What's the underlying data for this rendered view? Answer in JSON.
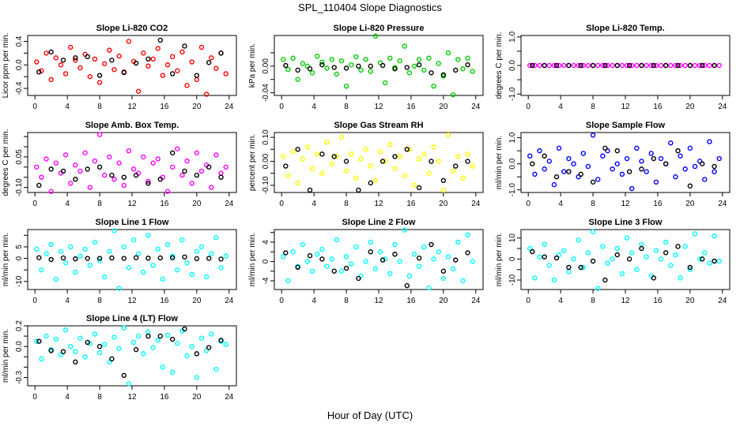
{
  "title": "SPL_110404  Slope Diagnostics",
  "xlabel": "Hour of Day (UTC)",
  "chart_data": {
    "type": "scatter",
    "grid": false,
    "xlim": [
      -0.9,
      24.9
    ],
    "xticks": [
      0,
      4,
      8,
      12,
      16,
      20,
      24
    ],
    "x": [
      0.2,
      0.8,
      1.4,
      2.0,
      2.6,
      3.2,
      3.8,
      4.4,
      5.0,
      5.6,
      6.2,
      6.8,
      7.4,
      8.0,
      8.6,
      9.2,
      9.8,
      10.4,
      11.0,
      11.6,
      12.2,
      12.8,
      13.4,
      14.0,
      14.6,
      15.2,
      15.8,
      16.4,
      17.0,
      17.6,
      18.2,
      18.8,
      19.4,
      20.0,
      20.6,
      21.2,
      21.8,
      22.4,
      23.0,
      23.6
    ],
    "black_x": [
      0.5,
      2.0,
      3.5,
      5.0,
      6.5,
      8.0,
      9.5,
      11.0,
      12.5,
      14.0,
      15.5,
      17.0,
      18.5,
      20.0,
      21.5,
      23.0
    ],
    "black_color": "#000000",
    "panels": [
      {
        "title": "Slope Li-820 CO2",
        "ylabel": "Licor ppm per min.",
        "color": "#ff0000",
        "ylim": [
          -0.52,
          0.5
        ],
        "yticks": [
          -0.4,
          -0.2,
          0.0,
          0.2,
          0.4
        ],
        "ytick_labels": [
          "-0.4",
          "",
          "0.0",
          "",
          "0.4"
        ],
        "values": [
          0.05,
          -0.1,
          0.2,
          -0.25,
          0.12,
          0.0,
          -0.15,
          0.3,
          0.08,
          -0.05,
          0.18,
          -0.2,
          0.1,
          -0.3,
          0.02,
          0.25,
          -0.08,
          0.15,
          -0.12,
          0.4,
          0.06,
          -0.45,
          0.2,
          -0.02,
          0.1,
          0.28,
          -0.18,
          0.0,
          0.14,
          -0.1,
          0.22,
          -0.35,
          0.05,
          -0.25,
          0.3,
          -0.5,
          0.12,
          -0.06,
          0.2,
          -0.15
        ],
        "black": [
          -0.12,
          0.22,
          0.08,
          0.12,
          0.14,
          -0.18,
          0.08,
          -0.13,
          0.03,
          0.1,
          0.42,
          -0.15,
          0.32,
          -0.18,
          0.04,
          0.2
        ]
      },
      {
        "title": "Slope Li-820 Pressure",
        "ylabel": "kPa per min.",
        "color": "#00cd00",
        "ylim": [
          -0.044,
          0.046
        ],
        "yticks": [
          -0.04,
          -0.02,
          0.0,
          0.02
        ],
        "ytick_labels": [
          "-0.04",
          "",
          "0.00",
          ""
        ],
        "values": [
          0.01,
          -0.005,
          0.012,
          -0.02,
          0.004,
          0.0,
          -0.01,
          0.015,
          0.006,
          -0.003,
          0.01,
          -0.012,
          0.008,
          -0.03,
          0.002,
          0.014,
          -0.006,
          0.01,
          -0.008,
          0.045,
          0.005,
          -0.025,
          0.012,
          -0.002,
          0.008,
          0.03,
          -0.01,
          0.0,
          0.01,
          -0.006,
          0.012,
          -0.03,
          0.004,
          -0.015,
          0.02,
          -0.043,
          0.01,
          -0.004,
          0.012,
          -0.008
        ],
        "black": [
          0.001,
          -0.006,
          -0.004,
          0.002,
          -0.002,
          -0.003,
          0.0,
          0.0,
          0.001,
          -0.004,
          -0.002,
          0.002,
          -0.01,
          -0.013,
          -0.006,
          0.002
        ]
      },
      {
        "title": "Slope Li-820 Temp.",
        "ylabel": "degrees C per min.",
        "color": "#ff00ff",
        "ylim": [
          -1.05,
          1.05
        ],
        "yticks": [
          -1.0,
          -0.5,
          0.0,
          0.5,
          1.0
        ],
        "ytick_labels": [
          "-1.0",
          "",
          "0.0",
          "",
          "1.0"
        ],
        "values": [
          0,
          0,
          0,
          0,
          0,
          0,
          0,
          0,
          0,
          0,
          0,
          0,
          0,
          0,
          0,
          0,
          0,
          0,
          0,
          0,
          0,
          0,
          0,
          0,
          0,
          0,
          0,
          0,
          0,
          0,
          0,
          0,
          0,
          0,
          0,
          0,
          0,
          0,
          0,
          0
        ],
        "black": [
          0,
          0,
          0,
          0,
          0,
          0,
          0,
          0,
          0,
          0,
          0,
          0,
          0,
          0,
          0,
          0
        ]
      },
      {
        "title": "Slope Amb. Box Temp.",
        "ylabel": "degrees C per min.",
        "color": "#ff00ff",
        "ylim": [
          -0.125,
          0.17
        ],
        "yticks": [
          -0.1,
          -0.05,
          0.0,
          0.05,
          0.1,
          0.15
        ],
        "ytick_labels": [
          "-0.10",
          "",
          "",
          "0.05",
          "",
          ""
        ],
        "values": [
          0.0,
          -0.05,
          0.04,
          -0.12,
          0.02,
          -0.03,
          0.06,
          -0.08,
          0.01,
          -0.02,
          0.07,
          -0.1,
          0.03,
          0.16,
          -0.04,
          0.05,
          -0.06,
          0.02,
          -0.09,
          0.08,
          -0.01,
          -0.03,
          0.05,
          -0.07,
          0.02,
          0.04,
          -0.05,
          -0.12,
          0.0,
          0.09,
          -0.04,
          0.03,
          -0.08,
          0.07,
          -0.02,
          0.01,
          -0.1,
          0.06,
          -0.03,
          0.0
        ],
        "black": [
          -0.09,
          -0.01,
          -0.02,
          -0.06,
          -0.01,
          0.0,
          -0.04,
          -0.05,
          -0.04,
          -0.08,
          -0.06,
          0.07,
          -0.02,
          -0.04,
          0.0,
          -0.05
        ]
      },
      {
        "title": "Slope Gas Stream RH",
        "ylabel": "percent per min.",
        "color": "#ffff00",
        "ylim": [
          -0.13,
          0.12
        ],
        "yticks": [
          -0.1,
          -0.05,
          0.0,
          0.05,
          0.1
        ],
        "ytick_labels": [
          "-0.10",
          "",
          "0.00",
          "",
          "0.10"
        ],
        "values": [
          0.02,
          -0.06,
          0.04,
          -0.09,
          0.01,
          0.06,
          -0.03,
          0.03,
          -0.05,
          0.08,
          -0.01,
          0.02,
          0.1,
          -0.04,
          0.03,
          -0.07,
          0.01,
          0.05,
          -0.02,
          -0.08,
          0.04,
          0.0,
          0.07,
          -0.03,
          0.02,
          -0.06,
          0.05,
          -0.1,
          0.01,
          0.03,
          -0.05,
          0.06,
          0.0,
          -0.12,
          0.11,
          -0.04,
          0.02,
          -0.07,
          0.03,
          -0.02
        ],
        "black": [
          -0.02,
          0.05,
          -0.12,
          0.03,
          0.02,
          0.0,
          -0.12,
          -0.09,
          0.0,
          0.02,
          0.05,
          -0.11,
          0.0,
          -0.08,
          -0.02,
          0.0
        ]
      },
      {
        "title": "Slope Sample Flow",
        "ylabel": "ml/min per min.",
        "color": "#0000ff",
        "ylim": [
          -1.1,
          1.2
        ],
        "yticks": [
          -1.0,
          -0.5,
          0.0,
          0.5,
          1.0
        ],
        "ytick_labels": [
          "-1.0",
          "",
          "0.0",
          "",
          "1.0"
        ],
        "values": [
          0.3,
          -0.4,
          0.5,
          -0.2,
          0.1,
          -0.8,
          0.6,
          -0.3,
          0.2,
          0.0,
          -0.5,
          0.4,
          -0.1,
          1.1,
          -0.6,
          0.3,
          0.5,
          -0.2,
          0.0,
          -0.4,
          0.2,
          -0.95,
          0.6,
          0.1,
          -0.3,
          0.4,
          -0.7,
          0.2,
          0.0,
          0.8,
          -0.5,
          0.3,
          -0.2,
          0.6,
          -0.1,
          0.1,
          -0.6,
          0.85,
          -0.3,
          0.2
        ],
        "black": [
          0.0,
          0.3,
          -0.5,
          -0.3,
          -0.4,
          -0.7,
          0.6,
          0.5,
          -0.3,
          -0.2,
          0.2,
          0.0,
          0.5,
          -0.85,
          0.0,
          -0.1
        ]
      },
      {
        "title": "Slope Line 1 Flow",
        "ylabel": "ml/min per min.",
        "color": "#00ffff",
        "ylim": [
          -13.5,
          12.5
        ],
        "yticks": [
          -10,
          -5,
          0,
          5,
          10
        ],
        "ytick_labels": [
          "-10",
          "",
          "0",
          "5",
          ""
        ],
        "values": [
          4,
          -5,
          2,
          6,
          -9,
          3,
          -2,
          5,
          -6,
          1,
          4,
          -3,
          7,
          -1,
          -8,
          3,
          12,
          -13,
          5,
          -4,
          8,
          2,
          -6,
          10,
          -3,
          4,
          -9,
          6,
          1,
          -5,
          8,
          -2,
          -7,
          3,
          5,
          -8,
          2,
          9,
          -4,
          1
        ],
        "black": [
          0.3,
          -0.5,
          0.2,
          -0.2,
          0,
          0,
          0.2,
          0,
          0.3,
          0.1,
          0.2,
          0.3,
          0.6,
          -0.1,
          0,
          -0.3
        ]
      },
      {
        "title": "Slope Line 2 Flow",
        "ylabel": "ml/min per min.",
        "color": "#00ffff",
        "ylim": [
          -5.8,
          6.6
        ],
        "yticks": [
          -4,
          -2,
          0,
          2,
          4,
          6
        ],
        "ytick_labels": [
          "-4",
          "",
          "0",
          "",
          "4",
          ""
        ],
        "values": [
          1,
          -4,
          2,
          -1,
          3.5,
          0,
          -2,
          1.5,
          2.5,
          -1,
          0.5,
          4.5,
          -2,
          1,
          -0.5,
          3,
          -3,
          0,
          4,
          -1.5,
          2,
          0.5,
          -2.5,
          3.5,
          0,
          6.5,
          -3,
          1.5,
          -1,
          3,
          -5.5,
          0.5,
          2,
          -3.5,
          1,
          -1.5,
          4,
          -4,
          5.5,
          0
        ],
        "black": [
          1.8,
          -1.2,
          1.2,
          0.5,
          -2,
          -1.4,
          -3.5,
          2,
          0.3,
          1.5,
          -5,
          0.7,
          3.5,
          -2,
          0.3,
          1.8
        ]
      },
      {
        "title": "Slope Line 3 Flow",
        "ylabel": "ml/min per min.",
        "color": "#00ffff",
        "ylim": [
          -14.5,
          14
        ],
        "yticks": [
          -10,
          -5,
          0,
          5,
          10
        ],
        "ytick_labels": [
          "-10",
          "",
          "0",
          "",
          "10"
        ],
        "values": [
          5,
          -9,
          1,
          7,
          -3,
          -10,
          2,
          4,
          -6,
          0,
          9,
          -4,
          3,
          13,
          -14,
          6,
          -2,
          0,
          5,
          -7,
          10,
          3,
          -5,
          7,
          1,
          -8,
          4,
          0,
          8,
          -3,
          2,
          -9,
          6,
          -5,
          12,
          0,
          3,
          -2,
          11,
          -1
        ],
        "black": [
          3.5,
          1,
          0.5,
          -4,
          -4,
          -1,
          -10,
          2,
          0,
          5,
          -9,
          3,
          6,
          -4,
          0,
          -1
        ]
      },
      {
        "title": "Slope Line 4 (LT) Flow",
        "ylabel": "ml/min per min.",
        "color": "#00ffff",
        "ylim": [
          -0.38,
          0.2
        ],
        "yticks": [
          -0.3,
          -0.2,
          -0.1,
          0.0,
          0.1,
          0.2
        ],
        "ytick_labels": [
          "-0.3",
          "",
          "",
          "0.0",
          "",
          "0.2"
        ],
        "values": [
          0.05,
          -0.12,
          0.1,
          -0.03,
          0.07,
          -0.08,
          0.16,
          0.0,
          -0.05,
          0.08,
          -0.1,
          0.03,
          0.12,
          -0.06,
          0.02,
          -0.15,
          0.09,
          -0.02,
          0.18,
          -0.36,
          0.04,
          0.1,
          -0.07,
          0.14,
          -0.01,
          0.06,
          -0.2,
          0.11,
          -0.25,
          0.03,
          0.15,
          -0.09,
          0.0,
          -0.3,
          0.08,
          -0.04,
          0.12,
          -0.22,
          0.05,
          0.02
        ],
        "black": [
          0.05,
          -0.04,
          -0.05,
          -0.15,
          0.04,
          0.0,
          -0.12,
          -0.28,
          -0.03,
          0.1,
          0.1,
          0.07,
          0.17,
          -0.07,
          -0.01,
          0.06
        ]
      }
    ]
  }
}
